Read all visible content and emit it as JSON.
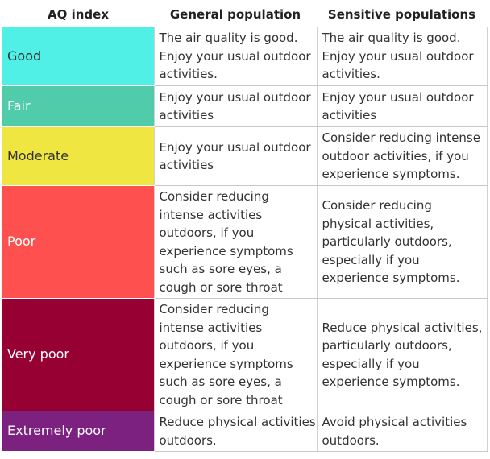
{
  "header": {
    "col1": "AQ index",
    "col2": "General population",
    "col3": "Sensitive populations"
  },
  "rows": [
    {
      "level": "Good",
      "color": "#50f0e6",
      "text_color": "#333333",
      "height": 73,
      "general": [
        "The air quality is good.",
        "Enjoy your usual outdoor",
        "activities."
      ],
      "sensitive": [
        "The air quality is good.",
        "Enjoy your usual outdoor",
        "activities."
      ]
    },
    {
      "level": "Fair",
      "color": "#50ccaa",
      "text_color": "#ffffff",
      "height": 51,
      "general": [
        "Enjoy your usual outdoor",
        "activities"
      ],
      "sensitive": [
        "Enjoy your usual outdoor",
        "activities"
      ]
    },
    {
      "level": "Moderate",
      "color": "#f0e641",
      "text_color": "#333333",
      "height": 73,
      "general": [
        "Enjoy your usual outdoor",
        "activities"
      ],
      "sensitive": [
        "Consider reducing intense",
        "outdoor activities, if you",
        "experience symptoms."
      ]
    },
    {
      "level": "Poor",
      "color": "#ff5050",
      "text_color": "#ffffff",
      "height": 140,
      "general": [
        "Consider reducing",
        "intense activities",
        "outdoors, if you",
        "experience symptoms",
        "such as sore eyes, a",
        "cough or sore throat"
      ],
      "sensitive": [
        "Consider reducing",
        "physical activities,",
        "particularly outdoors,",
        "especially if you",
        "experience symptoms."
      ]
    },
    {
      "level": "Very poor",
      "color": "#960032",
      "text_color": "#ffffff",
      "height": 140,
      "general": [
        "Consider reducing",
        "intense activities",
        "outdoors, if you",
        "experience symptoms",
        "such as sore eyes, a",
        "cough or sore throat"
      ],
      "sensitive": [
        "Reduce physical activities,",
        "particularly outdoors,",
        "especially if you",
        "experience symptoms."
      ]
    },
    {
      "level": "Extremely poor",
      "color": "#7d2181",
      "text_color": "#ffffff",
      "height": 50,
      "general": [
        "Reduce physical activities",
        "outdoors."
      ],
      "sensitive": [
        "Avoid physical activities",
        "outdoors."
      ]
    }
  ]
}
